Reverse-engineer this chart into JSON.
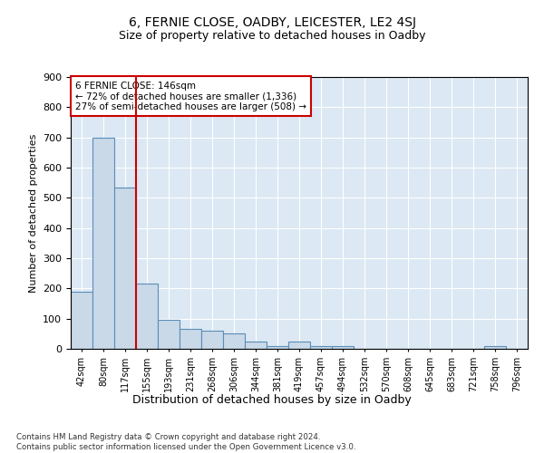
{
  "title1": "6, FERNIE CLOSE, OADBY, LEICESTER, LE2 4SJ",
  "title2": "Size of property relative to detached houses in Oadby",
  "xlabel": "Distribution of detached houses by size in Oadby",
  "ylabel": "Number of detached properties",
  "footnote": "Contains HM Land Registry data © Crown copyright and database right 2024.\nContains public sector information licensed under the Open Government Licence v3.0.",
  "bins": [
    "42sqm",
    "80sqm",
    "117sqm",
    "155sqm",
    "193sqm",
    "231sqm",
    "268sqm",
    "306sqm",
    "344sqm",
    "381sqm",
    "419sqm",
    "457sqm",
    "494sqm",
    "532sqm",
    "570sqm",
    "608sqm",
    "645sqm",
    "683sqm",
    "721sqm",
    "758sqm",
    "796sqm"
  ],
  "values": [
    190,
    700,
    535,
    215,
    95,
    65,
    60,
    50,
    25,
    10,
    25,
    10,
    10,
    0,
    0,
    0,
    0,
    0,
    0,
    10,
    0
  ],
  "bar_color": "#c9d9e8",
  "bar_edge_color": "#5b8db8",
  "vline_color": "#cc0000",
  "annotation_line1": "6 FERNIE CLOSE: 146sqm",
  "annotation_line2": "← 72% of detached houses are smaller (1,336)",
  "annotation_line3": "27% of semi-detached houses are larger (508) →",
  "ylim": [
    0,
    900
  ],
  "yticks": [
    0,
    100,
    200,
    300,
    400,
    500,
    600,
    700,
    800,
    900
  ],
  "bg_color": "#dce8f3",
  "title1_fontsize": 10,
  "title2_fontsize": 9
}
